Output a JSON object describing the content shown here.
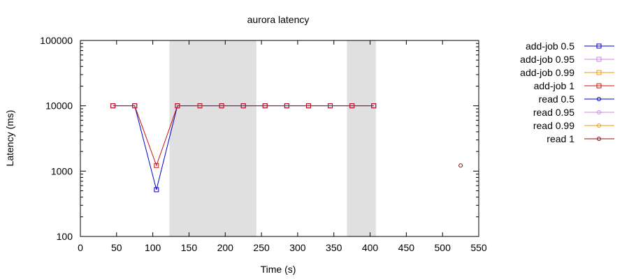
{
  "chart_data": {
    "type": "line",
    "title": "aurora latency",
    "xlabel": "Time (s)",
    "ylabel": "Latency (ms)",
    "xlim": [
      0,
      550
    ],
    "ylim": [
      100,
      100000
    ],
    "yscale": "log",
    "x_ticks": [
      "0",
      "50",
      "100",
      "150",
      "200",
      "250",
      "300",
      "350",
      "400",
      "450",
      "500",
      "550"
    ],
    "y_ticks": [
      "100",
      "1000",
      "10000",
      "100000"
    ],
    "legend_position": "outside-right",
    "shaded_regions": [
      [
        123,
        243
      ],
      [
        368,
        408
      ]
    ],
    "series": [
      {
        "name": "add-job 0.5",
        "color": "#0000cc",
        "marker": "square",
        "x": [
          45,
          75,
          105,
          134,
          165,
          195,
          225,
          255,
          285,
          315,
          345,
          375,
          405
        ],
        "y": [
          10000,
          10000,
          520,
          10000,
          10000,
          10000,
          10000,
          10000,
          10000,
          10000,
          10000,
          10000,
          10000
        ]
      },
      {
        "name": "add-job 0.95",
        "color": "#cc88dd",
        "marker": "square",
        "x": [],
        "y": []
      },
      {
        "name": "add-job 0.99",
        "color": "#ee9911",
        "marker": "square",
        "x": [],
        "y": []
      },
      {
        "name": "add-job 1",
        "color": "#cc1111",
        "marker": "square",
        "x": [
          45,
          75,
          105,
          134,
          165,
          195,
          225,
          255,
          285,
          315,
          345,
          375,
          405
        ],
        "y": [
          10000,
          10000,
          1220,
          10000,
          10000,
          10000,
          10000,
          10000,
          10000,
          10000,
          10000,
          10000,
          10000
        ]
      },
      {
        "name": "read 0.5",
        "color": "#0000cc",
        "marker": "circle",
        "x": [],
        "y": []
      },
      {
        "name": "read 0.95",
        "color": "#cc88dd",
        "marker": "circle",
        "x": [],
        "y": []
      },
      {
        "name": "read 0.99",
        "color": "#ee9911",
        "marker": "circle",
        "x": [],
        "y": []
      },
      {
        "name": "read 1",
        "color": "#881111",
        "marker": "circle",
        "x": [
          525
        ],
        "y": [
          1220
        ]
      }
    ]
  }
}
